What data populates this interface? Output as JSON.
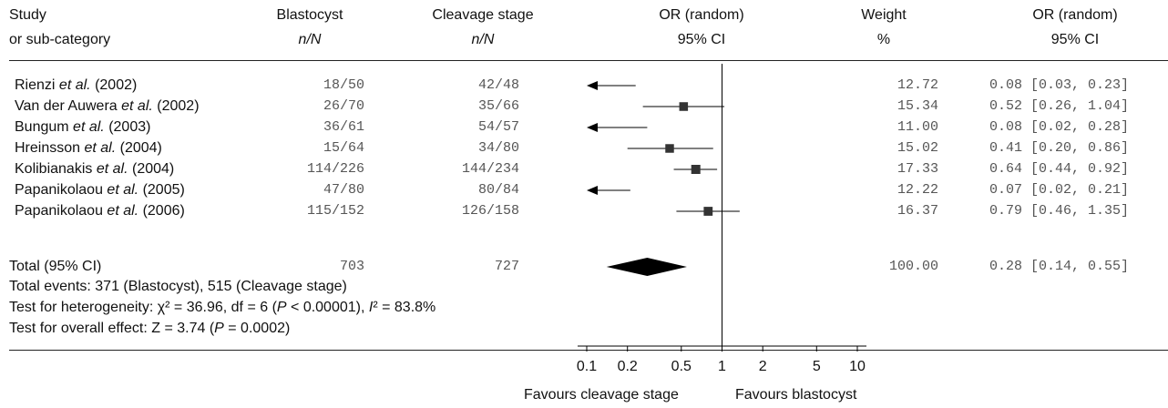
{
  "chart_data": {
    "type": "forest",
    "headers": {
      "study": [
        "Study",
        "or sub-category"
      ],
      "blastocyst": [
        "Blastocyst",
        "n/N"
      ],
      "cleavage": [
        "Cleavage stage",
        "n/N"
      ],
      "or_plot": [
        "OR (random)",
        "95% CI"
      ],
      "weight": [
        "Weight",
        "%"
      ],
      "or_values": [
        "OR (random)",
        "95% CI"
      ]
    },
    "studies": [
      {
        "author": "Rienzi",
        "etal": "et al.",
        "year": "(2002)",
        "blastocyst": "18/50",
        "cleavage": "42/48",
        "weight": "12.72",
        "or_text": "0.08 [0.03, 0.23]",
        "or": 0.08,
        "lo": 0.03,
        "hi": 0.23
      },
      {
        "author": "Van der Auwera",
        "etal": "et al.",
        "year": "(2002)",
        "blastocyst": "26/70",
        "cleavage": "35/66",
        "weight": "15.34",
        "or_text": "0.52 [0.26, 1.04]",
        "or": 0.52,
        "lo": 0.26,
        "hi": 1.04
      },
      {
        "author": "Bungum",
        "etal": "et al.",
        "year": "(2003)",
        "blastocyst": "36/61",
        "cleavage": "54/57",
        "weight": "11.00",
        "or_text": "0.08 [0.02, 0.28]",
        "or": 0.08,
        "lo": 0.02,
        "hi": 0.28
      },
      {
        "author": "Hreinsson",
        "etal": "et al.",
        "year": "(2004)",
        "blastocyst": "15/64",
        "cleavage": "34/80",
        "weight": "15.02",
        "or_text": "0.41 [0.20, 0.86]",
        "or": 0.41,
        "lo": 0.2,
        "hi": 0.86
      },
      {
        "author": "Kolibianakis",
        "etal": "et al.",
        "year": "(2004)",
        "blastocyst": "114/226",
        "cleavage": "144/234",
        "weight": "17.33",
        "or_text": "0.64 [0.44, 0.92]",
        "or": 0.64,
        "lo": 0.44,
        "hi": 0.92
      },
      {
        "author": "Papanikolaou",
        "etal": "et al.",
        "year": "(2005)",
        "blastocyst": "47/80",
        "cleavage": "80/84",
        "weight": "12.22",
        "or_text": "0.07 [0.02, 0.21]",
        "or": 0.07,
        "lo": 0.02,
        "hi": 0.21
      },
      {
        "author": "Papanikolaou",
        "etal": "et al.",
        "year": "(2006)",
        "blastocyst": "115/152",
        "cleavage": "126/158",
        "weight": "16.37",
        "or_text": "0.79 [0.46, 1.35]",
        "or": 0.79,
        "lo": 0.46,
        "hi": 1.35
      }
    ],
    "total": {
      "label": "Total (95% CI)",
      "blastocyst": "703",
      "cleavage": "727",
      "weight": "100.00",
      "or_text": "0.28 [0.14, 0.55]",
      "or": 0.28,
      "lo": 0.14,
      "hi": 0.55
    },
    "total_events": "Total events: 371 (Blastocyst), 515 (Cleavage stage)",
    "heterogeneity": {
      "pre": "Test for heterogeneity: χ² = 36.96, df = 6 (",
      "p": "P",
      "mid": " < 0.00001), ",
      "i2": "I",
      "post": "² = 83.8%"
    },
    "overall": {
      "pre": "Test for overall effect: Z = 3.74 (",
      "p": "P",
      "post": " = 0.0002)"
    },
    "axis": {
      "scale": "log",
      "ticks": [
        0.1,
        0.2,
        0.5,
        1,
        2,
        5,
        10
      ],
      "tick_labels": [
        "0.1",
        "0.2",
        "0.5",
        "1",
        "2",
        "5",
        "10"
      ],
      "min": 0.1,
      "max": 10
    },
    "favours_left": "Favours cleavage stage",
    "favours_right": "Favours blastocyst"
  }
}
